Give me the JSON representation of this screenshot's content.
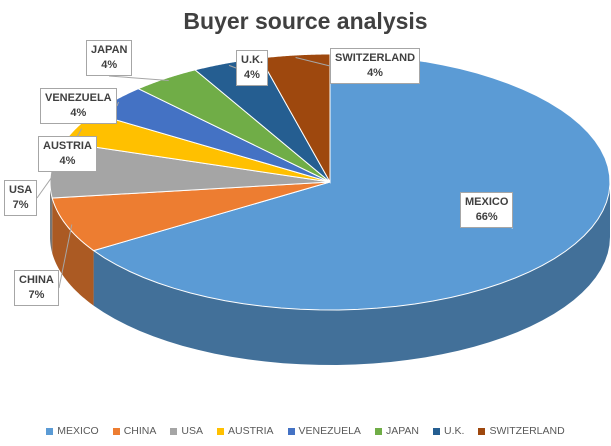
{
  "chart_data": {
    "type": "pie",
    "title": "Buyer source analysis",
    "categories": [
      "MEXICO",
      "CHINA",
      "USA",
      "AUSTRIA",
      "VENEZUELA",
      "JAPAN",
      "U.K.",
      "SWITZERLAND"
    ],
    "values": [
      66,
      7,
      7,
      4,
      4,
      4,
      4,
      4
    ],
    "value_labels": [
      "66%",
      "7%",
      "7%",
      "4%",
      "4%",
      "4%",
      "4%",
      "4%"
    ],
    "colors": [
      "#5B9BD5",
      "#ED7D31",
      "#A5A5A5",
      "#FFC000",
      "#4472C4",
      "#70AD47",
      "#255E91",
      "#9E480E"
    ],
    "style": "3d-pie",
    "legend_position": "bottom"
  }
}
